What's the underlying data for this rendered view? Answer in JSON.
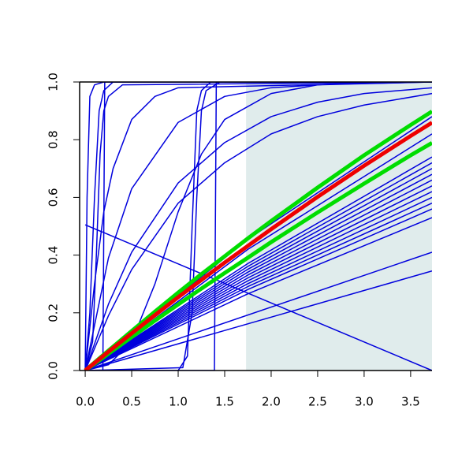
{
  "chart_data": {
    "type": "line",
    "xlim": [
      -0.06,
      3.73
    ],
    "ylim": [
      0,
      1
    ],
    "xticks": [
      {
        "value": 0,
        "label": "0.0"
      },
      0.5,
      {
        "value": 1,
        "label": "1.0"
      },
      1.5,
      {
        "value": 2,
        "label": "2.0"
      },
      2.5,
      {
        "value": 3,
        "label": "3.0"
      },
      3.5
    ],
    "yticks": [
      {
        "value": 0,
        "label": "0.0"
      },
      0.2,
      0.4,
      0.6,
      0.8,
      {
        "value": 1,
        "label": "1.0"
      }
    ],
    "shaded_region": [
      1.73,
      3.73
    ],
    "shade_color": "#e0ecec",
    "series": [
      {
        "color": "#0000dd",
        "width": 1.5,
        "x": [
          0,
          1.75,
          3.73
        ],
        "values": [
          0,
          0.266,
          0.53
        ]
      },
      {
        "color": "#0000dd",
        "width": 1.5,
        "x": [
          0,
          1.75,
          3.73
        ],
        "values": [
          0,
          0.281,
          0.56
        ]
      },
      {
        "color": "#0000dd",
        "width": 1.5,
        "x": [
          0,
          1.75,
          3.73
        ],
        "values": [
          0,
          0.291,
          0.58
        ]
      },
      {
        "color": "#0000dd",
        "width": 1.5,
        "x": [
          0,
          1.75,
          3.73
        ],
        "values": [
          0,
          0.301,
          0.6
        ]
      },
      {
        "color": "#0000dd",
        "width": 1.5,
        "x": [
          0,
          1.75,
          3.73
        ],
        "values": [
          0,
          0.311,
          0.62
        ]
      },
      {
        "color": "#0000dd",
        "width": 1.5,
        "x": [
          0,
          1.75,
          3.73
        ],
        "values": [
          0,
          0.321,
          0.64
        ]
      },
      {
        "color": "#0000dd",
        "width": 1.5,
        "x": [
          0,
          1.75,
          3.73
        ],
        "values": [
          0,
          0.331,
          0.66
        ]
      },
      {
        "color": "#0000dd",
        "width": 1.5,
        "x": [
          0,
          1.75,
          3.73
        ],
        "values": [
          0,
          0.341,
          0.68
        ]
      },
      {
        "color": "#0000dd",
        "width": 1.5,
        "x": [
          0,
          1.75,
          3.73
        ],
        "values": [
          0,
          0.351,
          0.7
        ]
      },
      {
        "color": "#0000dd",
        "width": 1.5,
        "x": [
          0,
          1.75,
          3.73
        ],
        "values": [
          0,
          0.361,
          0.72
        ]
      },
      {
        "color": "#0000dd",
        "width": 1.5,
        "x": [
          0,
          1.75,
          3.73
        ],
        "values": [
          0,
          0.371,
          0.74
        ]
      },
      {
        "color": "#0000dd",
        "width": 1.5,
        "x": [
          0,
          1.75,
          3.73
        ],
        "values": [
          0,
          0.42,
          0.82
        ]
      },
      {
        "color": "#0000dd",
        "width": 1.5,
        "x": [
          0,
          1.75,
          3.73
        ],
        "values": [
          0,
          0.455,
          0.88
        ]
      },
      {
        "color": "#0000dd",
        "width": 1.5,
        "x": [
          0,
          3.73
        ],
        "values": [
          0,
          0.41
        ]
      },
      {
        "color": "#0000dd",
        "width": 1.5,
        "x": [
          0,
          3.73
        ],
        "values": [
          0,
          0.345
        ]
      },
      {
        "color": "#0000dd",
        "width": 1.5,
        "x": [
          0,
          3.73
        ],
        "values": [
          0.505,
          0
        ]
      },
      {
        "color": "#0000dd",
        "width": 1.5,
        "x": [
          0,
          0.02,
          0.05,
          0.1,
          0.2,
          3.73
        ],
        "values": [
          0,
          0.6,
          0.95,
          0.99,
          1,
          1
        ]
      },
      {
        "color": "#0000dd",
        "width": 1.5,
        "x": [
          0,
          0.05,
          0.1,
          0.15,
          0.2,
          0.3,
          3.73
        ],
        "values": [
          0,
          0.2,
          0.6,
          0.9,
          0.97,
          1,
          1
        ]
      },
      {
        "color": "#0000dd",
        "width": 1.5,
        "x": [
          0,
          0.08,
          0.12,
          0.16,
          0.2,
          0.25,
          0.4,
          3.73
        ],
        "values": [
          0,
          0.1,
          0.4,
          0.75,
          0.9,
          0.95,
          0.99,
          1
        ]
      },
      {
        "color": "#0000dd",
        "width": 1.5,
        "x": [
          0,
          0.1,
          0.2,
          0.3,
          0.5,
          0.75,
          1,
          3.73
        ],
        "values": [
          0,
          0.3,
          0.55,
          0.7,
          0.87,
          0.95,
          0.98,
          1
        ]
      },
      {
        "color": "#0000dd",
        "width": 1.5,
        "x": [
          0,
          0.19,
          0.2,
          0.21,
          3.73
        ],
        "values": [
          0,
          0,
          0.5,
          1,
          1
        ]
      },
      {
        "color": "#0000dd",
        "width": 1.5,
        "x": [
          0,
          1.0,
          1.1,
          1.15,
          1.2,
          1.25,
          1.35,
          3.73
        ],
        "values": [
          0,
          0,
          0.05,
          0.5,
          0.9,
          0.97,
          1,
          1
        ]
      },
      {
        "color": "#0000dd",
        "width": 1.5,
        "x": [
          0,
          1.05,
          1.15,
          1.2,
          1.25,
          1.3,
          1.45,
          3.73
        ],
        "values": [
          0,
          0.01,
          0.2,
          0.6,
          0.9,
          0.97,
          1,
          1
        ]
      },
      {
        "color": "#0000dd",
        "width": 1.5,
        "x": [
          0,
          1.39,
          1.4,
          1.41,
          3.73
        ],
        "values": [
          0,
          0,
          0.5,
          1,
          1
        ]
      },
      {
        "color": "#0000dd",
        "width": 1.5,
        "x": [
          0,
          0.25,
          0.5,
          0.75,
          1,
          1.25,
          1.5,
          2,
          2.5,
          3.73
        ],
        "values": [
          0,
          0.02,
          0.1,
          0.3,
          0.55,
          0.75,
          0.87,
          0.96,
          0.99,
          1
        ]
      },
      {
        "color": "#0000dd",
        "width": 1.5,
        "x": [
          0,
          0.25,
          0.5,
          1,
          1.5,
          2,
          3,
          3.73
        ],
        "values": [
          0,
          0.39,
          0.63,
          0.86,
          0.95,
          0.98,
          1,
          1
        ]
      },
      {
        "color": "#0000dd",
        "width": 1.5,
        "x": [
          0,
          0.25,
          0.5,
          1,
          1.5,
          2,
          2.5,
          3,
          3.73
        ],
        "values": [
          0,
          0.23,
          0.41,
          0.65,
          0.79,
          0.88,
          0.93,
          0.96,
          0.98
        ]
      },
      {
        "color": "#0000dd",
        "width": 1.5,
        "x": [
          0,
          0.25,
          0.5,
          1,
          1.5,
          2,
          2.5,
          3,
          3.73
        ],
        "values": [
          0,
          0.19,
          0.35,
          0.58,
          0.72,
          0.82,
          0.88,
          0.92,
          0.96
        ]
      },
      {
        "color": "#00dd00",
        "width": 5,
        "x": [
          0,
          0.25,
          0.5,
          0.75,
          1,
          1.25,
          1.5,
          1.75,
          2,
          2.5,
          3,
          3.5,
          3.73
        ],
        "values": [
          0,
          0.069,
          0.137,
          0.204,
          0.27,
          0.334,
          0.396,
          0.458,
          0.518,
          0.634,
          0.746,
          0.851,
          0.898
        ]
      },
      {
        "color": "#00dd00",
        "width": 5,
        "x": [
          0,
          0.25,
          0.5,
          0.75,
          1,
          1.25,
          1.5,
          1.75,
          2,
          2.5,
          3,
          3.5,
          3.73
        ],
        "values": [
          0,
          0.058,
          0.116,
          0.173,
          0.229,
          0.284,
          0.338,
          0.391,
          0.445,
          0.548,
          0.648,
          0.746,
          0.789
        ]
      },
      {
        "color": "#ee0000",
        "width": 5,
        "x": [
          0,
          0.25,
          0.5,
          0.75,
          1,
          1.25,
          1.5,
          1.75,
          2,
          2.5,
          3,
          3.5,
          3.73
        ],
        "values": [
          0,
          0.065,
          0.129,
          0.192,
          0.254,
          0.314,
          0.374,
          0.432,
          0.49,
          0.602,
          0.71,
          0.813,
          0.859
        ]
      }
    ]
  }
}
